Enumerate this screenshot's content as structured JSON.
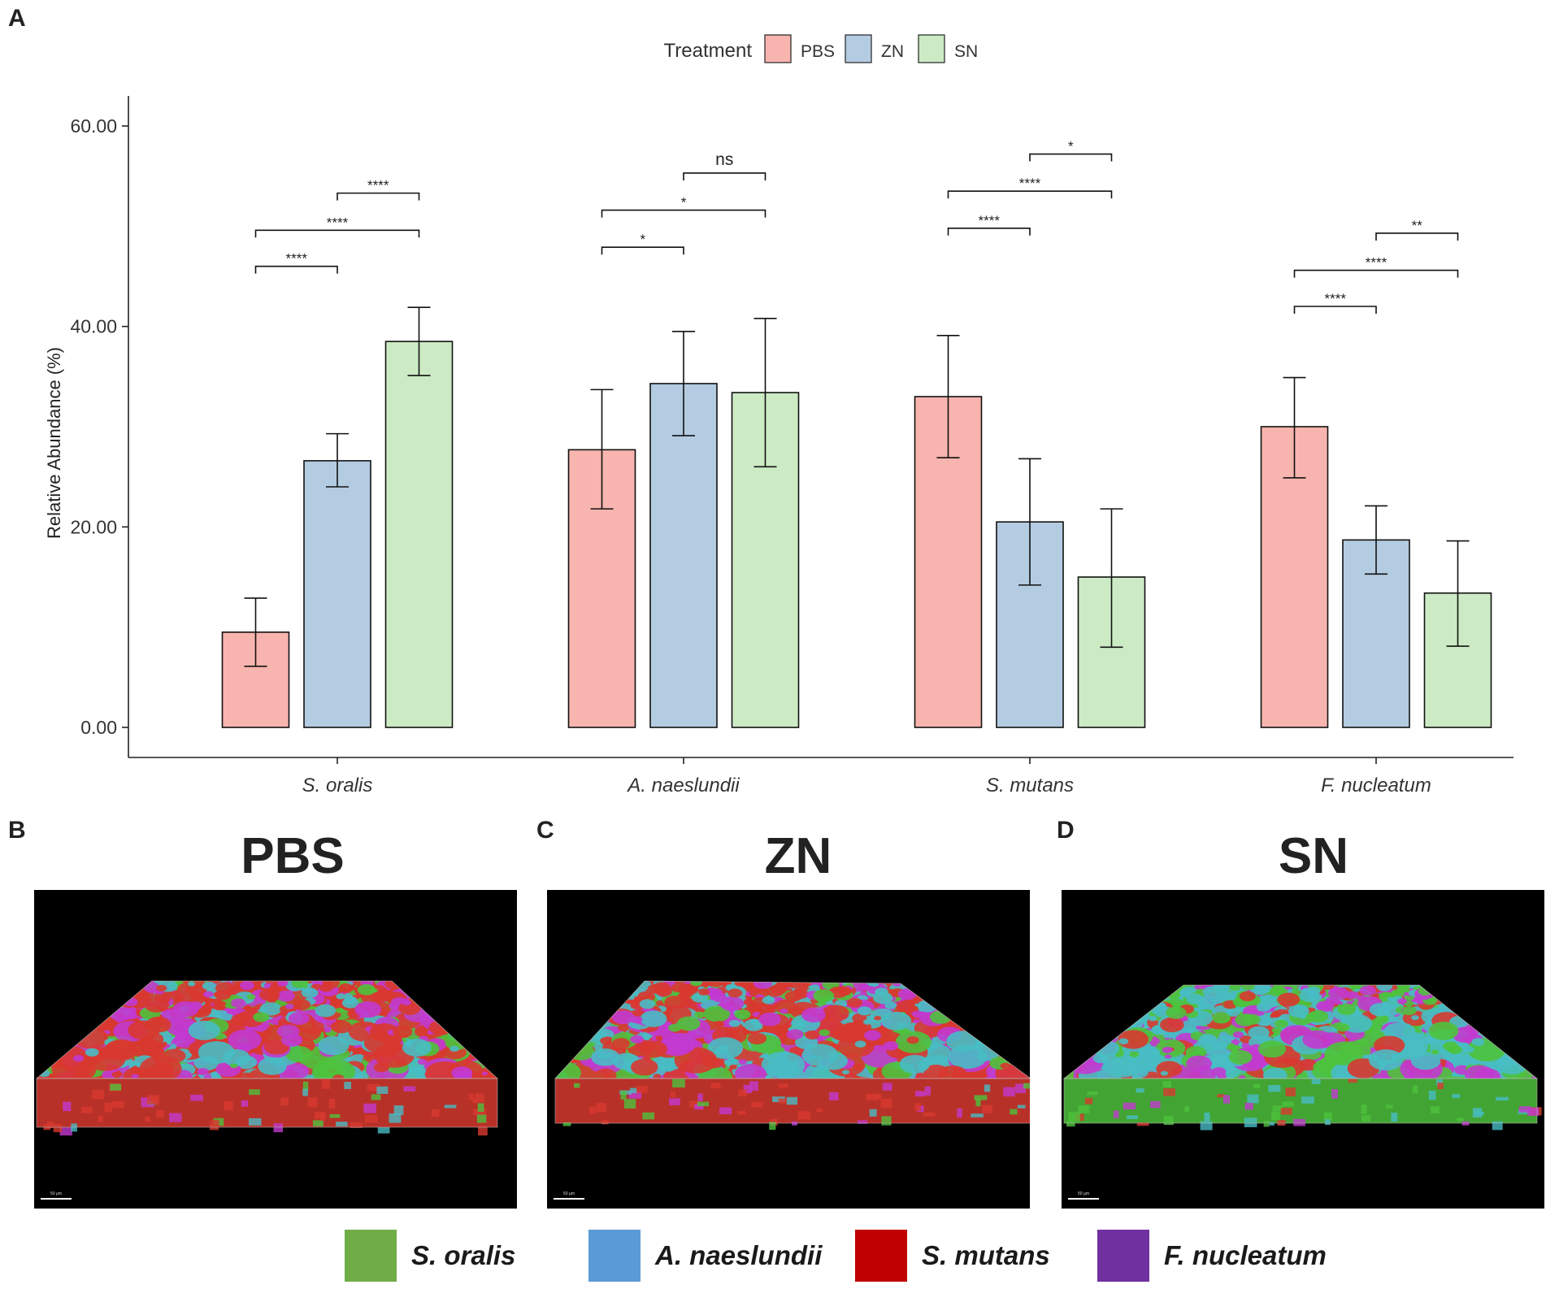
{
  "chart_data": {
    "type": "bar",
    "panel_label": "A",
    "ylabel": "Relative Abundance (%)",
    "xlabel": "",
    "ylim": [
      -3,
      63
    ],
    "yticks": [
      "0.00",
      "20.00",
      "40.00",
      "60.00"
    ],
    "ytick_values": [
      0,
      20,
      40,
      60
    ],
    "legend": {
      "title": "Treatment",
      "position": "top-center",
      "entries": [
        "PBS",
        "ZN",
        "SN"
      ]
    },
    "categories": [
      "S. oralis",
      "A. naeslundii",
      "S. mutans",
      "F. nucleatum"
    ],
    "series": [
      {
        "name": "PBS",
        "color": "#f8b4ae",
        "values": [
          9.5,
          27.7,
          33.0,
          30.0
        ],
        "err_low": [
          6.1,
          21.8,
          26.9,
          24.9
        ],
        "err_high": [
          12.9,
          33.7,
          39.1,
          34.9
        ]
      },
      {
        "name": "ZN",
        "color": "#b4cce2",
        "values": [
          26.6,
          34.3,
          20.5,
          18.7
        ],
        "err_low": [
          24.0,
          29.1,
          14.2,
          15.3
        ],
        "err_high": [
          29.3,
          39.5,
          26.8,
          22.1
        ]
      },
      {
        "name": "SN",
        "color": "#ccebc4",
        "values": [
          38.5,
          33.4,
          15.0,
          13.4
        ],
        "err_low": [
          35.1,
          26.0,
          8.0,
          8.1
        ],
        "err_high": [
          41.9,
          40.8,
          21.8,
          18.6
        ]
      }
    ],
    "significance": [
      {
        "category": 0,
        "from": 0,
        "to": 1,
        "label": "****",
        "y": 46.0
      },
      {
        "category": 0,
        "from": 0,
        "to": 2,
        "label": "****",
        "y": 49.6
      },
      {
        "category": 0,
        "from": 1,
        "to": 2,
        "label": "****",
        "y": 53.3
      },
      {
        "category": 1,
        "from": 0,
        "to": 1,
        "label": "*",
        "y": 47.9
      },
      {
        "category": 1,
        "from": 0,
        "to": 2,
        "label": "*",
        "y": 51.6
      },
      {
        "category": 1,
        "from": 1,
        "to": 2,
        "label": "ns",
        "y": 55.3
      },
      {
        "category": 2,
        "from": 0,
        "to": 1,
        "label": "****",
        "y": 49.8
      },
      {
        "category": 2,
        "from": 0,
        "to": 2,
        "label": "****",
        "y": 53.5
      },
      {
        "category": 2,
        "from": 1,
        "to": 2,
        "label": "*",
        "y": 57.2
      },
      {
        "category": 3,
        "from": 0,
        "to": 1,
        "label": "****",
        "y": 42.0
      },
      {
        "category": 3,
        "from": 0,
        "to": 2,
        "label": "****",
        "y": 45.6
      },
      {
        "category": 3,
        "from": 1,
        "to": 2,
        "label": "**",
        "y": 49.3
      }
    ]
  },
  "images": [
    {
      "letter": "B",
      "title": "PBS",
      "scale_label": "50 µm"
    },
    {
      "letter": "C",
      "title": "ZN",
      "scale_label": "50 µm"
    },
    {
      "letter": "D",
      "title": "SN",
      "scale_label": "50 µm"
    }
  ],
  "species_legend": [
    {
      "name": "S. oralis",
      "color": "#70ad47"
    },
    {
      "name": "A. naeslundii",
      "color": "#5b9bd5"
    },
    {
      "name": "S. mutans",
      "color": "#c00000"
    },
    {
      "name": "F. nucleatum",
      "color": "#7030a0"
    }
  ],
  "render_colors": {
    "green": "#4ec23c",
    "cyan": "#48bcc4",
    "red": "#d8392f",
    "magenta": "#c23ad0"
  }
}
